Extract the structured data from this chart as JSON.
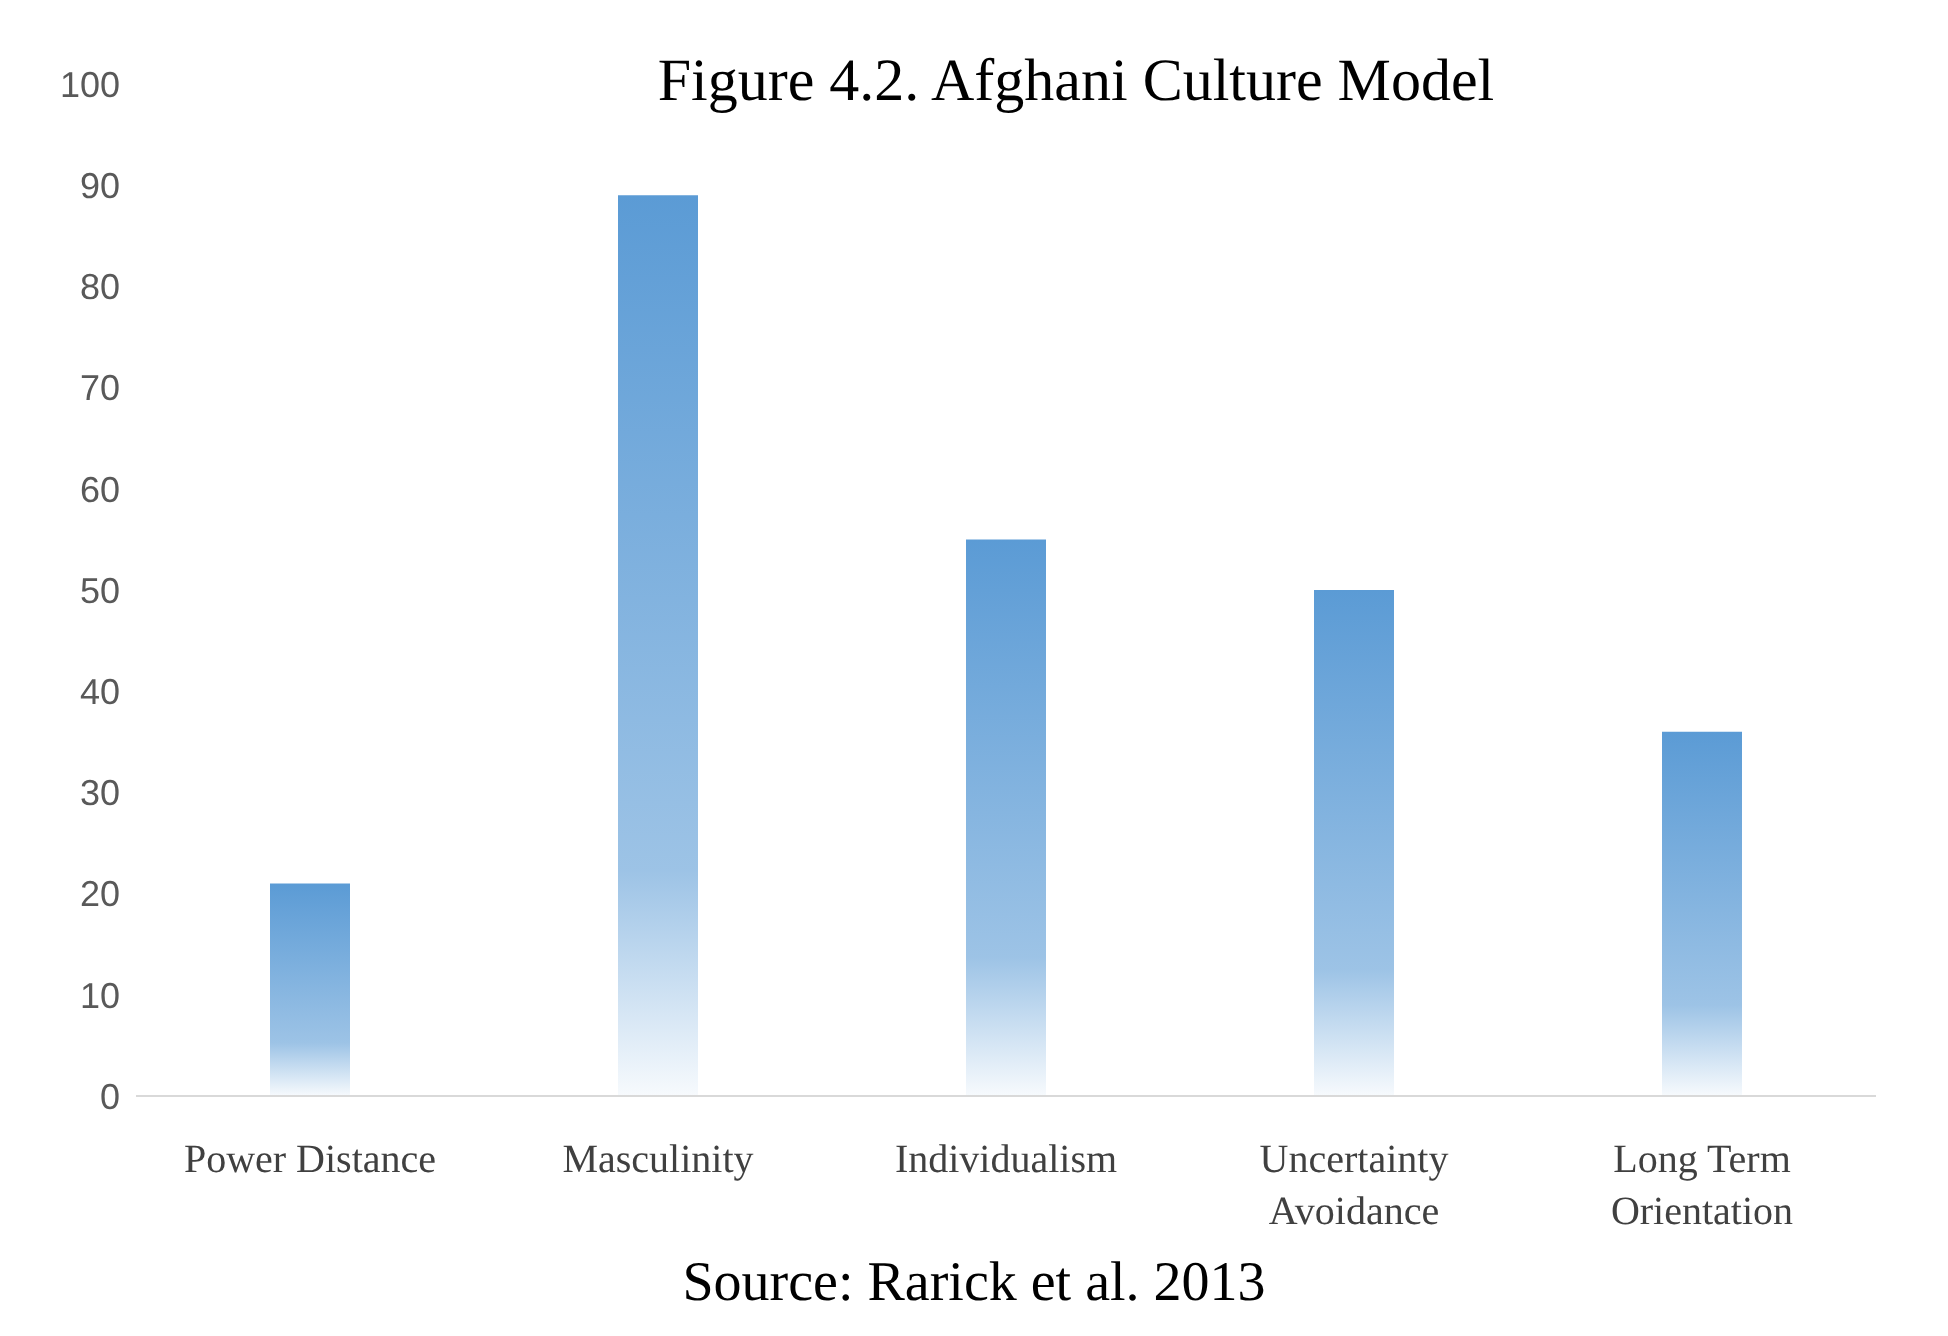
{
  "chart_data": {
    "type": "bar",
    "title": "Figure 4.2. Afghani Culture Model",
    "categories": [
      "Power Distance",
      "Masculinity",
      "Individualism",
      "Uncertainty Avoidance",
      "Long Term Orientation"
    ],
    "values": [
      21,
      89,
      55,
      50,
      36
    ],
    "color": "#5b9bd5",
    "ylim": [
      0,
      100
    ],
    "yticks": [
      0,
      10,
      20,
      30,
      40,
      50,
      60,
      70,
      80,
      90,
      100
    ],
    "grid": false,
    "annotations": [
      "Source: Rarick et al. 2013"
    ]
  }
}
